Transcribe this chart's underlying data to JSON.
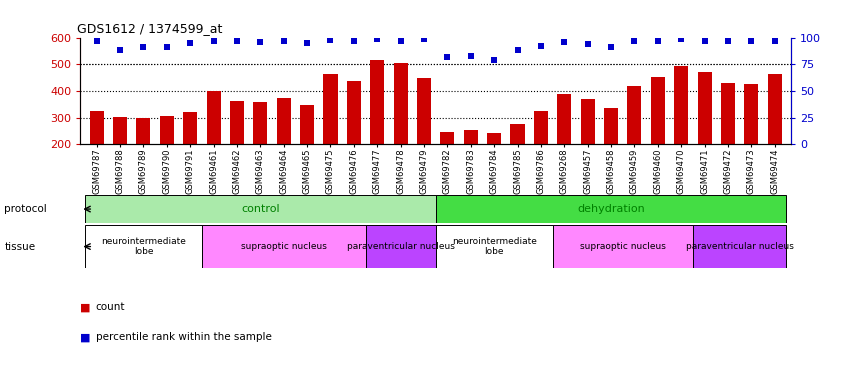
{
  "title": "GDS1612 / 1374599_at",
  "samples": [
    "GSM69787",
    "GSM69788",
    "GSM69789",
    "GSM69790",
    "GSM69791",
    "GSM69461",
    "GSM69462",
    "GSM69463",
    "GSM69464",
    "GSM69465",
    "GSM69475",
    "GSM69476",
    "GSM69477",
    "GSM69478",
    "GSM69479",
    "GSM69782",
    "GSM69783",
    "GSM69784",
    "GSM69785",
    "GSM69786",
    "GSM69268",
    "GSM69457",
    "GSM69458",
    "GSM69459",
    "GSM69460",
    "GSM69470",
    "GSM69471",
    "GSM69472",
    "GSM69473",
    "GSM69474"
  ],
  "counts": [
    325,
    302,
    300,
    308,
    320,
    400,
    362,
    360,
    375,
    348,
    465,
    436,
    517,
    505,
    449,
    248,
    252,
    242,
    275,
    324,
    390,
    368,
    336,
    420,
    452,
    495,
    472,
    428,
    425,
    462
  ],
  "percentiles": [
    97,
    88,
    91,
    91,
    95,
    97,
    97,
    96,
    97,
    95,
    98,
    97,
    99,
    97,
    99,
    82,
    83,
    79,
    88,
    92,
    96,
    94,
    91,
    97,
    97,
    99,
    97,
    97,
    97,
    97
  ],
  "bar_color": "#CC0000",
  "dot_color": "#0000CC",
  "ylim_left": [
    200,
    600
  ],
  "ylim_right": [
    0,
    100
  ],
  "yticks_left": [
    200,
    300,
    400,
    500,
    600
  ],
  "yticks_right": [
    0,
    25,
    50,
    75,
    100
  ],
  "grid_values": [
    300,
    400,
    500
  ],
  "protocol_groups": [
    {
      "label": "control",
      "start": 0,
      "end": 14,
      "color": "#AAEAAA"
    },
    {
      "label": "dehydration",
      "start": 15,
      "end": 29,
      "color": "#44DD44"
    }
  ],
  "tissue_groups": [
    {
      "label": "neurointermediate\nlobe",
      "start": 0,
      "end": 4,
      "color": "#FFFFFF"
    },
    {
      "label": "supraoptic nucleus",
      "start": 5,
      "end": 11,
      "color": "#FF88FF"
    },
    {
      "label": "paraventricular nucleus",
      "start": 12,
      "end": 14,
      "color": "#BB44FF"
    },
    {
      "label": "neurointermediate\nlobe",
      "start": 15,
      "end": 19,
      "color": "#FFFFFF"
    },
    {
      "label": "supraoptic nucleus",
      "start": 20,
      "end": 25,
      "color": "#FF88FF"
    },
    {
      "label": "paraventricular nucleus",
      "start": 26,
      "end": 29,
      "color": "#BB44FF"
    }
  ]
}
